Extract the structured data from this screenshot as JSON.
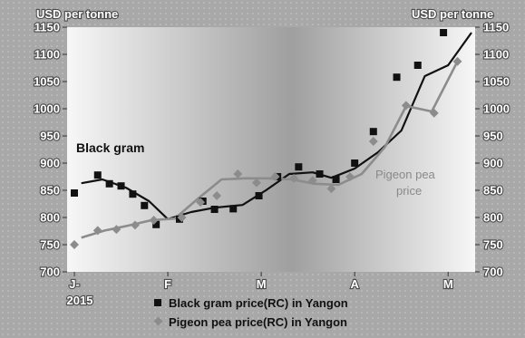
{
  "chart_data": {
    "type": "line",
    "y_unit_left": "USD per tonne",
    "y_unit_right": "USD per tonne",
    "ylim": [
      700,
      1150
    ],
    "yticks": [
      700,
      750,
      800,
      850,
      900,
      950,
      1000,
      1050,
      1100,
      1150
    ],
    "x_ticks": [
      {
        "label": "J-",
        "sublabel": "2015",
        "x": 0
      },
      {
        "label": "F",
        "sublabel": "",
        "x": 4
      },
      {
        "label": "M",
        "sublabel": "",
        "x": 8
      },
      {
        "label": "A",
        "sublabel": "",
        "x": 12
      },
      {
        "label": "M",
        "sublabel": "",
        "x": 16
      }
    ],
    "series": [
      {
        "name": "Black gram price(RC) in Yangon",
        "label": "Black gram",
        "color": "#111111",
        "marker": "square",
        "points": [
          {
            "x": 0,
            "y": 845
          },
          {
            "x": 1,
            "y": 878
          },
          {
            "x": 1.5,
            "y": 862
          },
          {
            "x": 2,
            "y": 858
          },
          {
            "x": 2.5,
            "y": 843
          },
          {
            "x": 3,
            "y": 822
          },
          {
            "x": 3.5,
            "y": 787
          },
          {
            "x": 4.5,
            "y": 797
          },
          {
            "x": 5.5,
            "y": 830
          },
          {
            "x": 6,
            "y": 815
          },
          {
            "x": 6.8,
            "y": 816
          },
          {
            "x": 7.9,
            "y": 840
          },
          {
            "x": 8.7,
            "y": 875
          },
          {
            "x": 9.6,
            "y": 893
          },
          {
            "x": 10.5,
            "y": 880
          },
          {
            "x": 11.2,
            "y": 870
          },
          {
            "x": 12,
            "y": 900
          },
          {
            "x": 12.8,
            "y": 958
          },
          {
            "x": 13.8,
            "y": 1058
          },
          {
            "x": 14.7,
            "y": 1080
          },
          {
            "x": 15.8,
            "y": 1140
          }
        ],
        "trend": [
          {
            "x": 0.3,
            "y": 863
          },
          {
            "x": 1.2,
            "y": 870
          },
          {
            "x": 2.2,
            "y": 855
          },
          {
            "x": 3.2,
            "y": 830
          },
          {
            "x": 4,
            "y": 797
          },
          {
            "x": 5,
            "y": 810
          },
          {
            "x": 6,
            "y": 818
          },
          {
            "x": 7.2,
            "y": 823
          },
          {
            "x": 8.2,
            "y": 850
          },
          {
            "x": 9.2,
            "y": 880
          },
          {
            "x": 10.2,
            "y": 883
          },
          {
            "x": 11,
            "y": 873
          },
          {
            "x": 12,
            "y": 890
          },
          {
            "x": 13,
            "y": 920
          },
          {
            "x": 14,
            "y": 960
          },
          {
            "x": 15,
            "y": 1060
          },
          {
            "x": 16,
            "y": 1080
          },
          {
            "x": 17,
            "y": 1140
          }
        ]
      },
      {
        "name": "Pigeon pea price(RC) in Yangon",
        "label": "Pigeon pea price",
        "color": "#8c8c8c",
        "marker": "diamond",
        "points": [
          {
            "x": 0,
            "y": 750
          },
          {
            "x": 1,
            "y": 776
          },
          {
            "x": 1.8,
            "y": 778
          },
          {
            "x": 2.6,
            "y": 786
          },
          {
            "x": 3.4,
            "y": 795
          },
          {
            "x": 4.6,
            "y": 800
          },
          {
            "x": 5.4,
            "y": 828
          },
          {
            "x": 6.1,
            "y": 840
          },
          {
            "x": 7,
            "y": 880
          },
          {
            "x": 7.8,
            "y": 864
          },
          {
            "x": 8.6,
            "y": 875
          },
          {
            "x": 9.4,
            "y": 872
          },
          {
            "x": 10.2,
            "y": 868
          },
          {
            "x": 11,
            "y": 853
          },
          {
            "x": 11.8,
            "y": 875
          },
          {
            "x": 12.8,
            "y": 940
          },
          {
            "x": 14.2,
            "y": 1006
          },
          {
            "x": 15.4,
            "y": 992
          },
          {
            "x": 16.4,
            "y": 1087
          }
        ],
        "trend": [
          {
            "x": 0.3,
            "y": 763
          },
          {
            "x": 1.3,
            "y": 776
          },
          {
            "x": 2.3,
            "y": 785
          },
          {
            "x": 3.3,
            "y": 795
          },
          {
            "x": 4.3,
            "y": 798
          },
          {
            "x": 5.3,
            "y": 835
          },
          {
            "x": 6.3,
            "y": 870
          },
          {
            "x": 7.3,
            "y": 872
          },
          {
            "x": 8.3,
            "y": 872
          },
          {
            "x": 9.3,
            "y": 870
          },
          {
            "x": 10.3,
            "y": 862
          },
          {
            "x": 11.3,
            "y": 860
          },
          {
            "x": 12.3,
            "y": 880
          },
          {
            "x": 13.3,
            "y": 930
          },
          {
            "x": 14.2,
            "y": 1005
          },
          {
            "x": 15.3,
            "y": 995
          },
          {
            "x": 16.4,
            "y": 1087
          }
        ]
      }
    ],
    "legend_position": "bottom",
    "grid": false
  },
  "colors": {
    "frame_background": "#a9a9a9",
    "plot_gradient_edge": "#f2f2f2",
    "plot_gradient_center": "#9a9a9a"
  }
}
